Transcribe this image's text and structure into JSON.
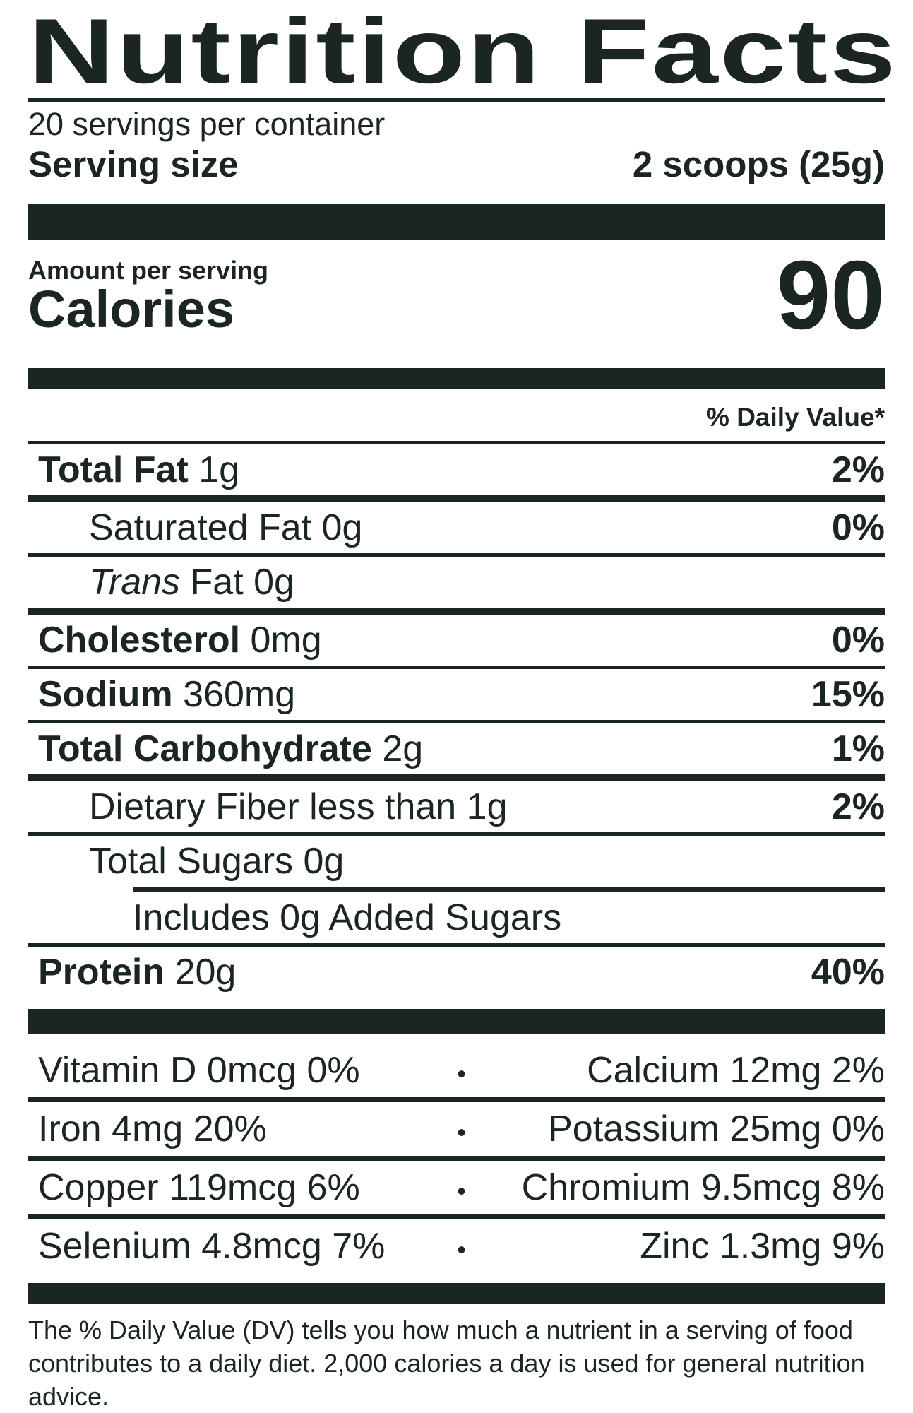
{
  "colors": {
    "ink": "#1b2620",
    "paper": "#ffffff"
  },
  "label": {
    "title": "Nutrition Facts",
    "servings_per_container": "20 servings per container",
    "serving_size": {
      "label": "Serving size",
      "value": "2 scoops (25g)"
    },
    "calories": {
      "context": "Amount per serving",
      "label": "Calories",
      "value": "90"
    },
    "daily_value_header": "% Daily Value*",
    "nutrients": [
      {
        "name": "Total Fat",
        "amount": "1g",
        "dv": "2%"
      },
      {
        "name": "Saturated Fat",
        "amount": "0g",
        "dv": "0%"
      },
      {
        "name_italic": "Trans",
        "name": "Fat",
        "amount": "0g",
        "dv": ""
      },
      {
        "name": "Cholesterol",
        "amount": "0mg",
        "dv": "0%"
      },
      {
        "name": "Sodium",
        "amount": "360mg",
        "dv": "15%"
      },
      {
        "name": "Total Carbohydrate",
        "amount": "2g",
        "dv": "1%"
      },
      {
        "name": "Dietary Fiber",
        "amount": "less than 1g",
        "dv": "2%"
      },
      {
        "name": "Total Sugars",
        "amount": "0g",
        "dv": ""
      },
      {
        "name": "Includes 0g Added Sugars",
        "amount": "",
        "dv": ""
      },
      {
        "name": "Protein",
        "amount": "20g",
        "dv": "40%"
      }
    ],
    "micronutrients": [
      {
        "left": "Vitamin D 0mcg 0%",
        "separator": "•",
        "right": "Calcium 12mg 2%"
      },
      {
        "left": "Iron 4mg 20%",
        "separator": "•",
        "right": "Potassium 25mg 0%"
      },
      {
        "left": "Copper 119mcg 6%",
        "separator": "•",
        "right": "Chromium 9.5mcg 8%"
      },
      {
        "left": "Selenium 4.8mcg 7%",
        "separator": "•",
        "right": "Zinc 1.3mg 9%"
      }
    ],
    "footnote": "The % Daily Value (DV) tells you how much a nutrient in a serving of food contributes to a daily diet. 2,000 calories a day is used for general nutrition advice."
  }
}
